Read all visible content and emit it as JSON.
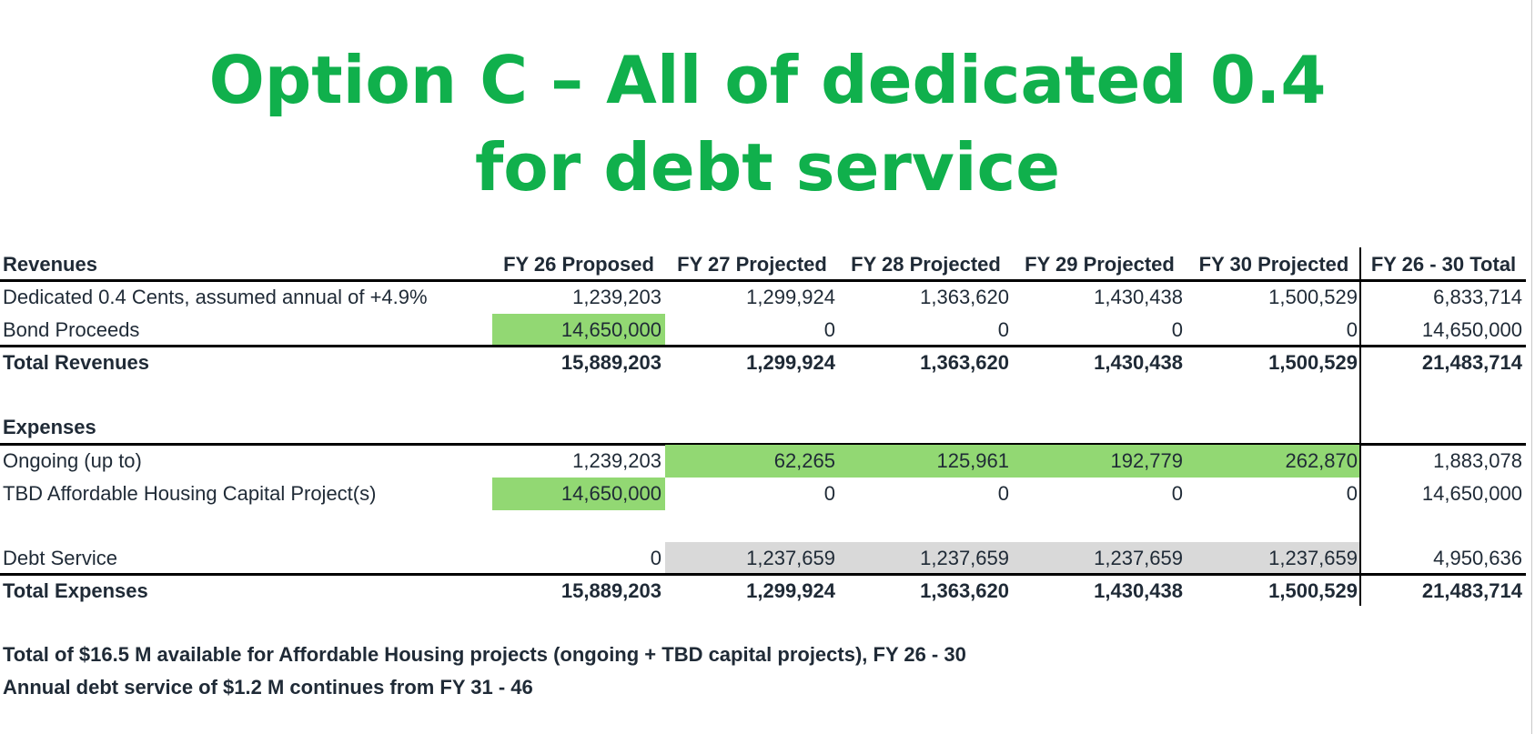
{
  "title": {
    "line1": "Option C – All of dedicated 0.4",
    "line2": "for debt service",
    "color": "#10b04c"
  },
  "table": {
    "headers": {
      "section": "Revenues",
      "columns": [
        "FY 26 Proposed",
        "FY 27 Projected",
        "FY 28 Projected",
        "FY 29 Projected",
        "FY 30 Projected",
        "FY 26 - 30 Total"
      ]
    },
    "revenues": [
      {
        "label": "Dedicated 0.4 Cents, assumed annual of +4.9%",
        "values": [
          "1,239,203",
          "1,299,924",
          "1,363,620",
          "1,430,438",
          "1,500,529",
          "6,833,714"
        ]
      },
      {
        "label": "Bond Proceeds",
        "values": [
          "14,650,000",
          "0",
          "0",
          "0",
          "0",
          "14,650,000"
        ]
      }
    ],
    "total_revenues": {
      "label": "Total Revenues",
      "values": [
        "15,889,203",
        "1,299,924",
        "1,363,620",
        "1,430,438",
        "1,500,529",
        "21,483,714"
      ]
    },
    "expenses_header": "Expenses",
    "expenses": [
      {
        "label": "Ongoing (up to)",
        "values": [
          "1,239,203",
          "62,265",
          "125,961",
          "192,779",
          "262,870",
          "1,883,078"
        ]
      },
      {
        "label": "TBD Affordable Housing Capital Project(s)",
        "values": [
          "14,650,000",
          "0",
          "0",
          "0",
          "0",
          "14,650,000"
        ]
      },
      {
        "label": "Debt Service",
        "values": [
          "0",
          "1,237,659",
          "1,237,659",
          "1,237,659",
          "1,237,659",
          "4,950,636"
        ]
      }
    ],
    "total_expenses": {
      "label": "Total Expenses",
      "values": [
        "15,889,203",
        "1,299,924",
        "1,363,620",
        "1,430,438",
        "1,500,529",
        "21,483,714"
      ]
    },
    "highlight_green": "#92d873",
    "highlight_gray": "#d9d9d9"
  },
  "notes": [
    "Total of $16.5 M available for Affordable Housing projects (ongoing + TBD capital projects), FY 26 - 30",
    "Annual debt service of $1.2 M continues from FY 31 - 46"
  ]
}
